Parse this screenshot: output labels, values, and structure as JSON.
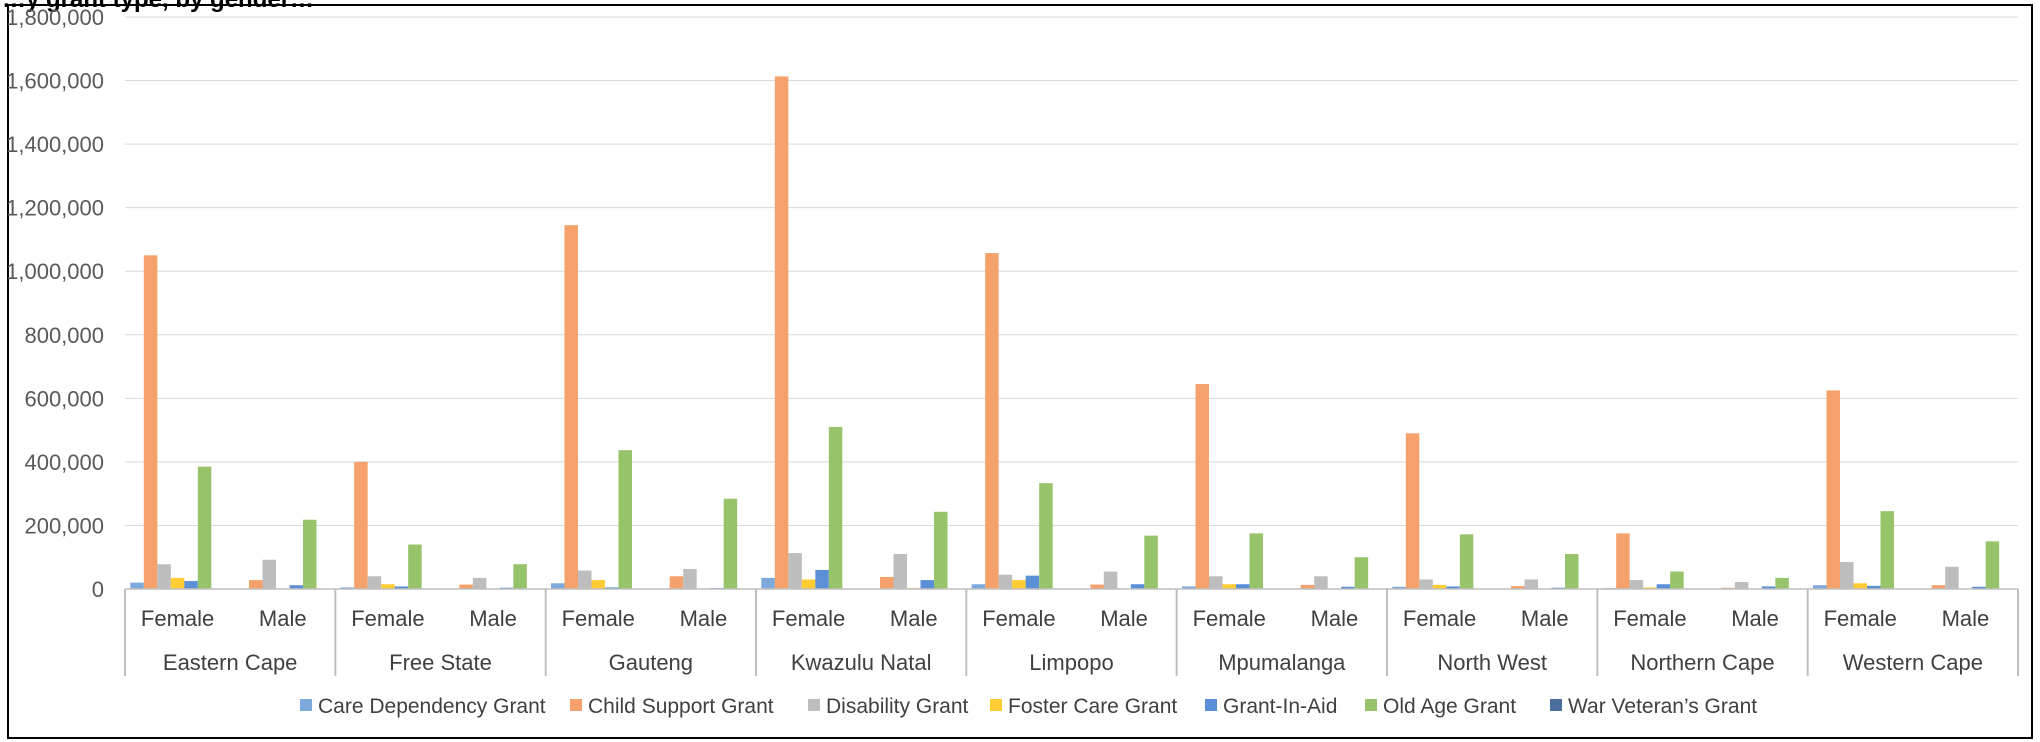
{
  "chart_data": {
    "type": "bar",
    "title": "",
    "title_partial": "…y grant type, by gender…",
    "xlabel": "",
    "ylabel": "",
    "ylim": [
      0,
      1800000
    ],
    "yticks": [
      0,
      200000,
      400000,
      600000,
      800000,
      1000000,
      1200000,
      1400000,
      1600000,
      1800000
    ],
    "ytick_labels": [
      "0",
      "200,000",
      "400,000",
      "600,000",
      "800,000",
      "1,000,000",
      "1,200,000",
      "1,400,000",
      "1,600,000",
      "1,800,000"
    ],
    "grid": true,
    "legend_position": "bottom",
    "groups": [
      "Eastern Cape",
      "Free State",
      "Gauteng",
      "Kwazulu Natal",
      "Limpopo",
      "Mpumalanga",
      "North West",
      "Northern Cape",
      "Western Cape"
    ],
    "subcategories": [
      "Female",
      "Male"
    ],
    "categories": [
      "Eastern Cape Female",
      "Eastern Cape Male",
      "Free State Female",
      "Free State Male",
      "Gauteng Female",
      "Gauteng Male",
      "Kwazulu Natal Female",
      "Kwazulu Natal Male",
      "Limpopo Female",
      "Limpopo Male",
      "Mpumalanga Female",
      "Mpumalanga Male",
      "North West Female",
      "North West Male",
      "Northern Cape Female",
      "Northern Cape Male",
      "Western Cape Female",
      "Western Cape Male"
    ],
    "series": [
      {
        "name": "Care Dependency Grant",
        "color": "#7ea9dc",
        "values": [
          20000,
          0,
          5000,
          0,
          18000,
          0,
          35000,
          0,
          15000,
          0,
          8000,
          0,
          7000,
          0,
          3000,
          0,
          12000,
          0
        ]
      },
      {
        "name": "Child Support Grant",
        "color": "#f4a16b",
        "values": [
          1050000,
          28000,
          400000,
          14000,
          1145000,
          40000,
          1613000,
          38000,
          1057000,
          14000,
          645000,
          13000,
          490000,
          9000,
          175000,
          4000,
          625000,
          12000
        ]
      },
      {
        "name": "Disability Grant",
        "color": "#bdbdbd",
        "values": [
          78000,
          92000,
          40000,
          35000,
          58000,
          63000,
          113000,
          110000,
          45000,
          55000,
          40000,
          40000,
          30000,
          30000,
          28000,
          22000,
          85000,
          70000
        ]
      },
      {
        "name": "Foster Care Grant",
        "color": "#ffcd33",
        "values": [
          35000,
          2000,
          15000,
          1000,
          28000,
          2000,
          30000,
          3000,
          28000,
          2000,
          15000,
          1000,
          13000,
          1000,
          5000,
          500,
          18000,
          1000
        ]
      },
      {
        "name": "Grant-In-Aid",
        "color": "#5b8fd6",
        "values": [
          25000,
          12000,
          8000,
          4000,
          5000,
          3000,
          60000,
          28000,
          42000,
          15000,
          15000,
          7000,
          8000,
          4000,
          15000,
          8000,
          10000,
          7000
        ]
      },
      {
        "name": "Old Age Grant",
        "color": "#97c46b",
        "values": [
          385000,
          218000,
          140000,
          78000,
          437000,
          284000,
          510000,
          243000,
          333000,
          168000,
          175000,
          100000,
          172000,
          110000,
          55000,
          35000,
          245000,
          150000
        ]
      },
      {
        "name": "War Veteran’s Grant",
        "color": "#4a6f9c",
        "values": [
          0,
          0,
          0,
          0,
          0,
          0,
          0,
          0,
          0,
          0,
          0,
          0,
          0,
          0,
          0,
          0,
          0,
          0
        ]
      }
    ]
  }
}
